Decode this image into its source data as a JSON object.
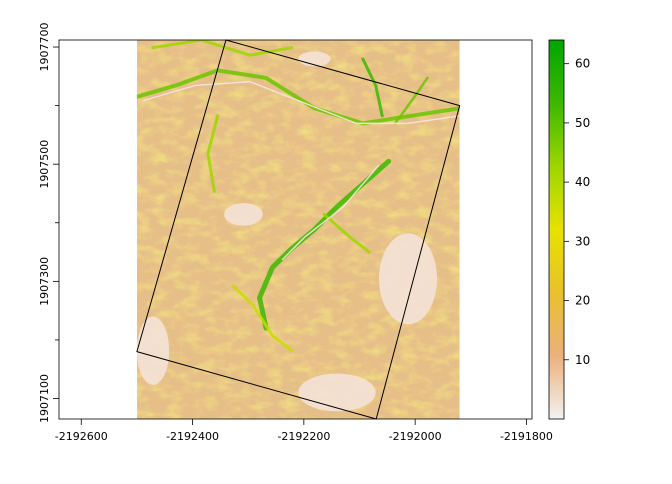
{
  "chart_data": {
    "type": "heatmap",
    "title": "",
    "xlabel": "",
    "ylabel": "",
    "xlim": [
      -2192640,
      -2191790
    ],
    "ylim": [
      1907065,
      1907712
    ],
    "raster_extent": {
      "xmin": -2192500,
      "xmax": -2191920,
      "ymin": 1907065,
      "ymax": 1907712
    },
    "x_ticks": [
      -2192600,
      -2192400,
      -2192200,
      -2192000,
      -2191800
    ],
    "x_tick_labels": [
      "-2192600",
      "-2192400",
      "-2192200",
      "-2192000",
      "-2191800"
    ],
    "y_ticks": [
      1907100,
      1907300,
      1907500,
      1907700
    ],
    "y_tick_labels": [
      "1907100",
      "1907300",
      "1907500",
      "1907700"
    ],
    "y_minor_ticks": [
      1907200,
      1907400,
      1907600
    ],
    "colorbar": {
      "min": 0,
      "max": 64,
      "ticks": [
        10,
        20,
        30,
        40,
        50,
        60
      ],
      "tick_labels": [
        "10",
        "20",
        "30",
        "40",
        "50",
        "60"
      ],
      "colors": [
        "#f2f2f2",
        "#ecb17c",
        "#e8c12c",
        "#e6e200",
        "#9ed600",
        "#3db800",
        "#00a600"
      ]
    },
    "polygon": [
      {
        "x": -2192340,
        "y": 1907712
      },
      {
        "x": -2191920,
        "y": 1907600
      },
      {
        "x": -2192070,
        "y": 1907065
      },
      {
        "x": -2192500,
        "y": 1907180
      }
    ],
    "grid": false,
    "legend": "right"
  }
}
